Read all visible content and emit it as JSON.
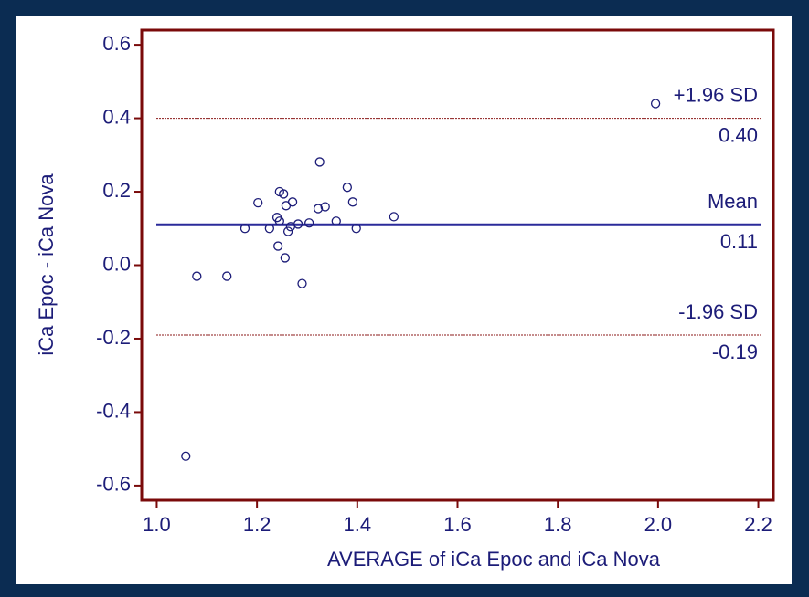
{
  "chart_data": {
    "type": "scatter",
    "xlabel": "AVERAGE of iCa Epoc and iCa Nova",
    "ylabel": "iCa Epoc - iCa Nova",
    "x": [
      1.058,
      1.08,
      1.14,
      1.176,
      1.202,
      1.225,
      1.24,
      1.245,
      1.245,
      1.253,
      1.242,
      1.256,
      1.258,
      1.262,
      1.271,
      1.267,
      1.282,
      1.29,
      1.304,
      1.322,
      1.325,
      1.336,
      1.358,
      1.38,
      1.391,
      1.398,
      1.473,
      1.995
    ],
    "values": [
      -0.52,
      -0.03,
      -0.03,
      0.1,
      0.17,
      0.1,
      0.13,
      0.12,
      0.2,
      0.194,
      0.052,
      0.02,
      0.162,
      0.092,
      0.172,
      0.105,
      0.112,
      -0.05,
      0.115,
      0.154,
      0.281,
      0.159,
      0.12,
      0.212,
      0.172,
      0.1,
      0.132,
      0.44
    ],
    "color": "#1c1c78",
    "reference_lines": [
      {
        "label": "+1.96 SD",
        "value": 0.4,
        "value_label": "0.40",
        "color": "#8b1a1a",
        "style": "dotted"
      },
      {
        "label": "Mean",
        "value": 0.11,
        "value_label": "0.11",
        "color": "#2a2a9a",
        "style": "solid"
      },
      {
        "label": "-1.96 SD",
        "value": -0.19,
        "value_label": "-0.19",
        "color": "#8b1a1a",
        "style": "dotted"
      }
    ],
    "xlim": [
      0.97,
      2.23
    ],
    "xticks": [
      {
        "value": 1,
        "label": "1.0"
      },
      1.2,
      1.4,
      1.6,
      1.8,
      {
        "value": 2,
        "label": "2.0"
      },
      2.2
    ],
    "ylim": [
      -0.64,
      0.64
    ],
    "yticks": [
      -0.6,
      -0.4,
      -0.2,
      {
        "value": 0,
        "label": "0.0"
      },
      0.2,
      0.4,
      0.6
    ]
  }
}
